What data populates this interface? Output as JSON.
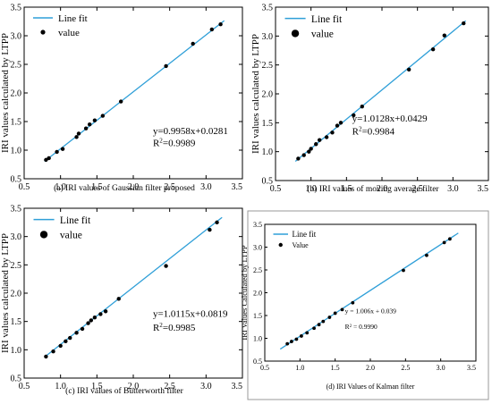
{
  "chart_data": [
    {
      "type": "scatter",
      "title": "",
      "caption": "(a) IRI values of Gaussian filter proposed",
      "xlabel": "",
      "ylabel": "IRI values calculated by LTPP",
      "xlim": [
        0.5,
        3.5
      ],
      "ylim": [
        0.5,
        3.5
      ],
      "xticks": [
        "0.5",
        "1.0",
        "1.5",
        "2.0",
        "2.5",
        "3.0",
        "3.5"
      ],
      "yticks": [
        "0.5",
        "1.0",
        "1.5",
        "2.0",
        "2.5",
        "3.0",
        "3.5"
      ],
      "legend": {
        "position": "top-left",
        "fit_label": "Line fit",
        "points_label": "value"
      },
      "equation": "y=0.9958x+0.0281",
      "r2_label": "R",
      "r2_value": "=0.9989",
      "fit": {
        "slope": 0.9958,
        "intercept": 0.0281,
        "x_range": [
          0.78,
          3.25
        ]
      },
      "points": [
        [
          0.8,
          0.83
        ],
        [
          0.84,
          0.86
        ],
        [
          0.95,
          0.97
        ],
        [
          1.03,
          1.02
        ],
        [
          1.22,
          1.23
        ],
        [
          1.25,
          1.29
        ],
        [
          1.35,
          1.38
        ],
        [
          1.4,
          1.45
        ],
        [
          1.47,
          1.52
        ],
        [
          1.58,
          1.6
        ],
        [
          1.83,
          1.85
        ],
        [
          2.45,
          2.47
        ],
        [
          2.82,
          2.86
        ],
        [
          3.08,
          3.11
        ],
        [
          3.2,
          3.2
        ]
      ],
      "grid": false
    },
    {
      "type": "scatter",
      "title": "",
      "caption": "(b) IRI values of moving average filter",
      "xlabel": "",
      "ylabel": "IRI values calculated by LTPP",
      "xlim": [
        0.5,
        3.5
      ],
      "ylim": [
        0.5,
        3.5
      ],
      "xticks": [
        "0.5",
        "1.0",
        "1.5",
        "2.0",
        "2.5",
        "3.0",
        "3.5"
      ],
      "yticks": [
        "0.5",
        "1.0",
        "1.5",
        "2.0",
        "2.5",
        "3.0",
        "3.5"
      ],
      "legend": {
        "position": "top-left",
        "fit_label": "Line fit",
        "points_label": "value"
      },
      "equation": "y=1.0128x+0.0429",
      "r2_label": "R",
      "r2_value": "=0.9984",
      "fit": {
        "slope": 1.0128,
        "intercept": 0.0429,
        "x_range": [
          0.78,
          3.18
        ]
      },
      "points": [
        [
          0.82,
          0.88
        ],
        [
          0.9,
          0.94
        ],
        [
          0.97,
          1.0
        ],
        [
          1.0,
          1.05
        ],
        [
          1.07,
          1.13
        ],
        [
          1.12,
          1.2
        ],
        [
          1.22,
          1.25
        ],
        [
          1.3,
          1.33
        ],
        [
          1.37,
          1.45
        ],
        [
          1.42,
          1.5
        ],
        [
          1.6,
          1.63
        ],
        [
          1.72,
          1.78
        ],
        [
          2.38,
          2.42
        ],
        [
          2.72,
          2.77
        ],
        [
          2.88,
          3.01
        ],
        [
          3.15,
          3.22
        ]
      ],
      "grid": false
    },
    {
      "type": "scatter",
      "title": "",
      "caption": "(c) IRI values of Butterworth filter",
      "xlabel": "",
      "ylabel": "IRI values calculated by LTPP",
      "xlim": [
        0.5,
        3.5
      ],
      "ylim": [
        0.5,
        3.5
      ],
      "xticks": [
        "0.5",
        "1.0",
        "1.5",
        "2.0",
        "2.5",
        "3.0",
        "3.5"
      ],
      "yticks": [
        "0.5",
        "1.0",
        "1.5",
        "2.0",
        "2.5",
        "3.0",
        "3.5"
      ],
      "legend": {
        "position": "top-left",
        "fit_label": "Line fit",
        "points_label": "value"
      },
      "equation": "y=1.0115x+0.0819",
      "r2_label": "R",
      "r2_value": "=0.9985",
      "fit": {
        "slope": 1.0115,
        "intercept": 0.0819,
        "x_range": [
          0.78,
          3.22
        ]
      },
      "points": [
        [
          0.8,
          0.88
        ],
        [
          0.9,
          0.97
        ],
        [
          1.0,
          1.07
        ],
        [
          1.07,
          1.15
        ],
        [
          1.13,
          1.21
        ],
        [
          1.22,
          1.3
        ],
        [
          1.3,
          1.37
        ],
        [
          1.38,
          1.47
        ],
        [
          1.42,
          1.52
        ],
        [
          1.47,
          1.57
        ],
        [
          1.55,
          1.63
        ],
        [
          1.62,
          1.68
        ],
        [
          1.8,
          1.9
        ],
        [
          2.45,
          2.48
        ],
        [
          3.05,
          3.12
        ],
        [
          3.15,
          3.25
        ]
      ],
      "grid": false
    },
    {
      "type": "scatter",
      "title": "",
      "caption": "(d) IRI Values of Kalman filter",
      "xlabel": "",
      "ylabel": "IRI Values Calculated by LTPP",
      "xlim": [
        0.5,
        3.5
      ],
      "ylim": [
        0.5,
        3.5
      ],
      "xticks": [
        "0.5",
        "1.0",
        "1.5",
        "2.0",
        "2.5",
        "3.0",
        "3.5"
      ],
      "yticks": [
        "0.5",
        "1.0",
        "1.5",
        "2.0",
        "2.5",
        "3.0",
        "3.5"
      ],
      "legend": {
        "position": "top-left",
        "fit_label": "Line fit",
        "points_label": "Value"
      },
      "equation": "y = 1.006x + 0.039",
      "r2_label": "R",
      "r2_value": " = 0.9990",
      "fit": {
        "slope": 1.006,
        "intercept": 0.039,
        "x_range": [
          0.72,
          3.25
        ]
      },
      "points": [
        [
          0.82,
          0.88
        ],
        [
          0.88,
          0.93
        ],
        [
          0.95,
          0.98
        ],
        [
          1.02,
          1.05
        ],
        [
          1.1,
          1.12
        ],
        [
          1.2,
          1.22
        ],
        [
          1.27,
          1.3
        ],
        [
          1.33,
          1.37
        ],
        [
          1.42,
          1.46
        ],
        [
          1.5,
          1.55
        ],
        [
          1.6,
          1.63
        ],
        [
          1.75,
          1.78
        ],
        [
          2.47,
          2.49
        ],
        [
          2.8,
          2.82
        ],
        [
          3.05,
          3.1
        ],
        [
          3.13,
          3.18
        ]
      ],
      "grid": false
    }
  ],
  "colors": {
    "fit_line": "#2f9fd8",
    "points": "#000000",
    "axis": "#000000",
    "frame_d": "#9a9a9a"
  }
}
